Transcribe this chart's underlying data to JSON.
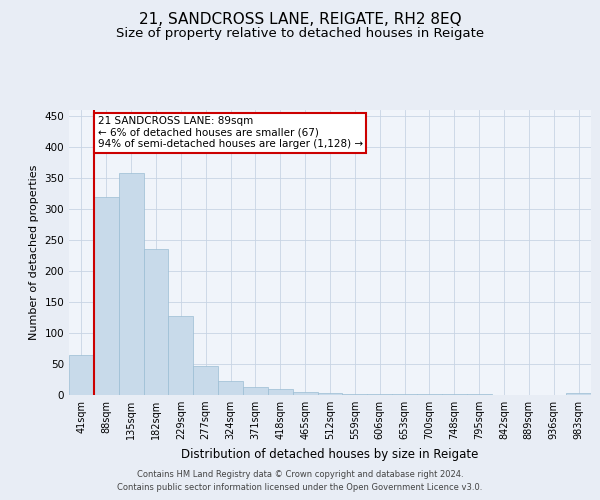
{
  "title": "21, SANDCROSS LANE, REIGATE, RH2 8EQ",
  "subtitle": "Size of property relative to detached houses in Reigate",
  "xlabel": "Distribution of detached houses by size in Reigate",
  "ylabel": "Number of detached properties",
  "bin_labels": [
    "41sqm",
    "88sqm",
    "135sqm",
    "182sqm",
    "229sqm",
    "277sqm",
    "324sqm",
    "371sqm",
    "418sqm",
    "465sqm",
    "512sqm",
    "559sqm",
    "606sqm",
    "653sqm",
    "700sqm",
    "748sqm",
    "795sqm",
    "842sqm",
    "889sqm",
    "936sqm",
    "983sqm"
  ],
  "bar_heights": [
    65,
    320,
    358,
    235,
    127,
    47,
    23,
    13,
    10,
    5,
    3,
    2,
    1,
    1,
    1,
    1,
    1,
    0,
    0,
    0,
    3
  ],
  "bar_color": "#c8daea",
  "bar_edge_color": "#9bbdd4",
  "annotation_text": "21 SANDCROSS LANE: 89sqm\n← 6% of detached houses are smaller (67)\n94% of semi-detached houses are larger (1,128) →",
  "annotation_box_color": "#ffffff",
  "annotation_box_edge_color": "#cc0000",
  "vline_color": "#cc0000",
  "ylim": [
    0,
    460
  ],
  "yticks": [
    0,
    50,
    100,
    150,
    200,
    250,
    300,
    350,
    400,
    450
  ],
  "footer_line1": "Contains HM Land Registry data © Crown copyright and database right 2024.",
  "footer_line2": "Contains public sector information licensed under the Open Government Licence v3.0.",
  "bg_color": "#e8edf5",
  "plot_bg_color": "#f0f4fa",
  "grid_color": "#c8d4e4",
  "title_fontsize": 11,
  "subtitle_fontsize": 9.5,
  "ylabel_fontsize": 8,
  "xlabel_fontsize": 8.5,
  "tick_fontsize": 7,
  "footer_fontsize": 6,
  "ann_fontsize": 7.5
}
